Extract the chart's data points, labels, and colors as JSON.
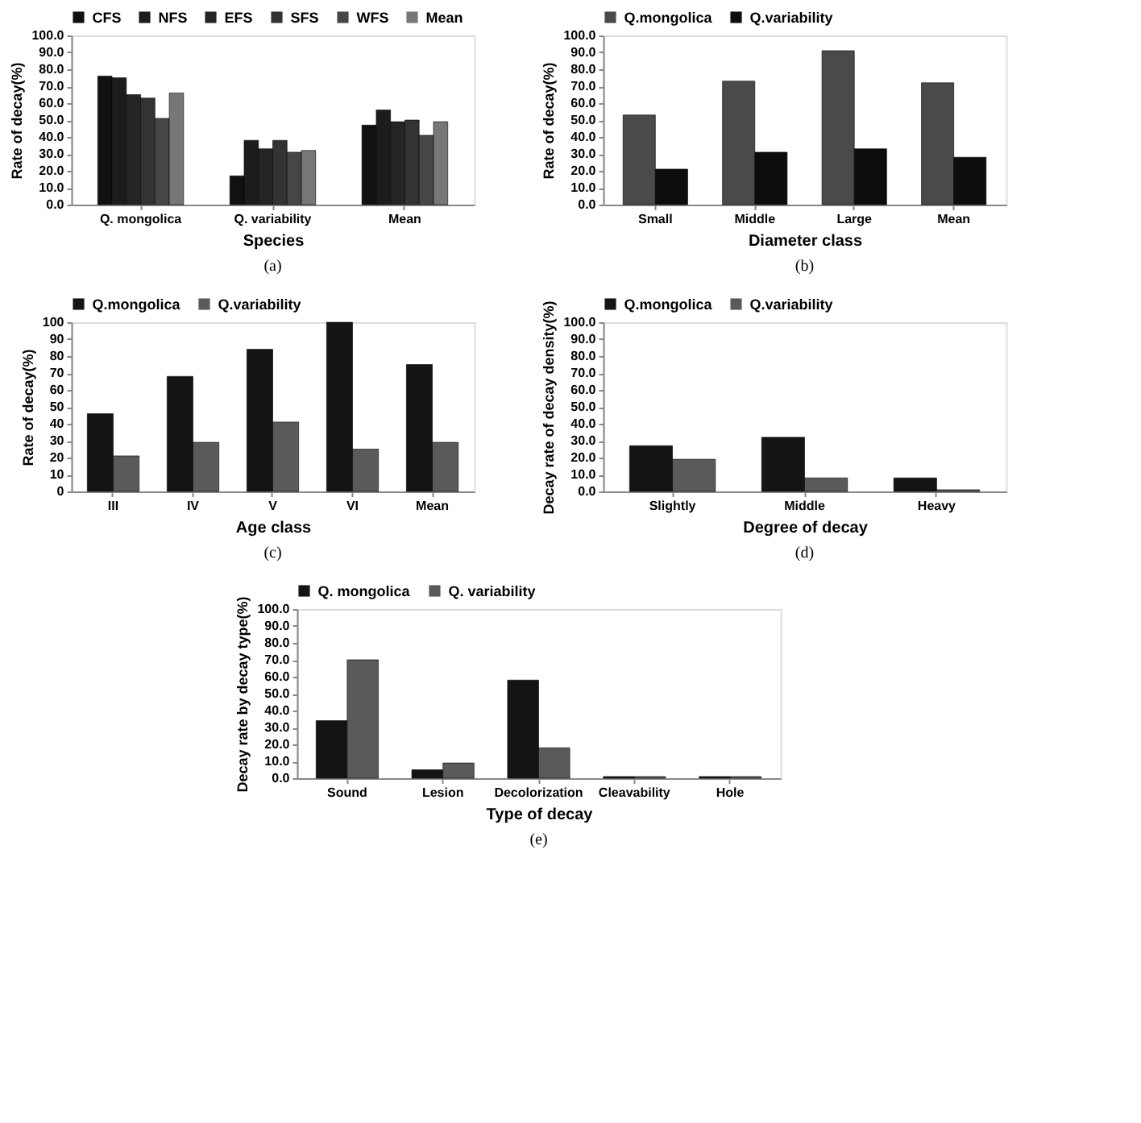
{
  "chart_data": [
    {
      "type": "bar",
      "xlabel": "Species",
      "ylabel": "Rate of decay(%)",
      "annotations": [
        "(a)"
      ],
      "categories": [
        "Q. mongolica",
        "Q. variability",
        "Mean"
      ],
      "legend": "top",
      "grid": false,
      "ylim": [
        0,
        100
      ],
      "yticks": [
        {
          "value": 0,
          "label": "0.0"
        },
        {
          "value": 10,
          "label": "10.0"
        },
        {
          "value": 20,
          "label": "20.0"
        },
        {
          "value": 30,
          "label": "30.0"
        },
        {
          "value": 40,
          "label": "40.0"
        },
        {
          "value": 50,
          "label": "50.0"
        },
        {
          "value": 60,
          "label": "60.0"
        },
        {
          "value": 70,
          "label": "70.0"
        },
        {
          "value": 80,
          "label": "80.0"
        },
        {
          "value": 90,
          "label": "90.0"
        },
        {
          "value": 100,
          "label": "100.0"
        }
      ],
      "series": [
        {
          "name": "CFS",
          "color": "#111111",
          "values": [
            76,
            17,
            47
          ]
        },
        {
          "name": "NFS",
          "color": "#1c1c1c",
          "values": [
            75,
            38,
            56
          ]
        },
        {
          "name": "EFS",
          "color": "#252525",
          "values": [
            65,
            33,
            49
          ]
        },
        {
          "name": "SFS",
          "color": "#333333",
          "values": [
            63,
            38,
            50
          ]
        },
        {
          "name": "WFS",
          "color": "#464646",
          "values": [
            51,
            31,
            41
          ]
        },
        {
          "name": "Mean",
          "color": "#777777",
          "values": [
            66,
            32,
            49
          ]
        }
      ]
    },
    {
      "type": "bar",
      "xlabel": "Diameter class",
      "ylabel": "Rate of decay(%)",
      "annotations": [
        "(b)"
      ],
      "categories": [
        "Small",
        "Middle",
        "Large",
        "Mean"
      ],
      "legend": "top",
      "grid": false,
      "ylim": [
        0,
        100
      ],
      "yticks": [
        {
          "value": 0,
          "label": "0.0"
        },
        {
          "value": 10,
          "label": "10.0"
        },
        {
          "value": 20,
          "label": "20.0"
        },
        {
          "value": 30,
          "label": "30.0"
        },
        {
          "value": 40,
          "label": "40.0"
        },
        {
          "value": 50,
          "label": "50.0"
        },
        {
          "value": 60,
          "label": "60.0"
        },
        {
          "value": 70,
          "label": "70.0"
        },
        {
          "value": 80,
          "label": "80.0"
        },
        {
          "value": 90,
          "label": "90.0"
        },
        {
          "value": 100,
          "label": "100.0"
        }
      ],
      "series": [
        {
          "name": "Q.mongolica",
          "color": "#4a4a4a",
          "values": [
            53,
            73,
            91,
            72
          ]
        },
        {
          "name": "Q.variability",
          "color": "#0d0d0d",
          "values": [
            21,
            31,
            33,
            28
          ]
        }
      ]
    },
    {
      "type": "bar",
      "xlabel": "Age class",
      "ylabel": "Rate of decay(%)",
      "annotations": [
        "(c)"
      ],
      "categories": [
        "III",
        "IV",
        "V",
        "VI",
        "Mean"
      ],
      "legend": "top",
      "grid": false,
      "ylim": [
        0,
        100
      ],
      "yticks": [
        0,
        10,
        20,
        30,
        40,
        50,
        60,
        70,
        80,
        90,
        100
      ],
      "series": [
        {
          "name": "Q.mongolica",
          "color": "#141414",
          "values": [
            46,
            68,
            84,
            100,
            75
          ]
        },
        {
          "name": "Q.variability",
          "color": "#5a5a5a",
          "values": [
            21,
            29,
            41,
            25,
            29
          ]
        }
      ]
    },
    {
      "type": "bar",
      "xlabel": "Degree of decay",
      "ylabel": "Decay rate of decay density(%)",
      "annotations": [
        "(d)"
      ],
      "categories": [
        "Slightly",
        "Middle",
        "Heavy"
      ],
      "legend": "top",
      "grid": false,
      "ylim": [
        0,
        100
      ],
      "yticks": [
        {
          "value": 0,
          "label": "0.0"
        },
        {
          "value": 10,
          "label": "10.0"
        },
        {
          "value": 20,
          "label": "20.0"
        },
        {
          "value": 30,
          "label": "30.0"
        },
        {
          "value": 40,
          "label": "40.0"
        },
        {
          "value": 50,
          "label": "50.0"
        },
        {
          "value": 60,
          "label": "60.0"
        },
        {
          "value": 70,
          "label": "70.0"
        },
        {
          "value": 80,
          "label": "80.0"
        },
        {
          "value": 90,
          "label": "90.0"
        },
        {
          "value": 100,
          "label": "100.0"
        }
      ],
      "series": [
        {
          "name": "Q.mongolica",
          "color": "#141414",
          "values": [
            27,
            32,
            8
          ]
        },
        {
          "name": "Q.variability",
          "color": "#5a5a5a",
          "values": [
            19,
            8,
            1
          ]
        }
      ]
    },
    {
      "type": "bar",
      "xlabel": "Type of decay",
      "ylabel": "Decay rate by decay type(%)",
      "annotations": [
        "(e)"
      ],
      "categories": [
        "Sound",
        "Lesion",
        "Decolorization",
        "Cleavability",
        "Hole"
      ],
      "legend": "top",
      "grid": false,
      "ylim": [
        0,
        100
      ],
      "yticks": [
        {
          "value": 0,
          "label": "0.0"
        },
        {
          "value": 10,
          "label": "10.0"
        },
        {
          "value": 20,
          "label": "20.0"
        },
        {
          "value": 30,
          "label": "30.0"
        },
        {
          "value": 40,
          "label": "40.0"
        },
        {
          "value": 50,
          "label": "50.0"
        },
        {
          "value": 60,
          "label": "60.0"
        },
        {
          "value": 70,
          "label": "70.0"
        },
        {
          "value": 80,
          "label": "80.0"
        },
        {
          "value": 90,
          "label": "90.0"
        },
        {
          "value": 100,
          "label": "100.0"
        }
      ],
      "series": [
        {
          "name": "Q. mongolica",
          "color": "#141414",
          "values": [
            34,
            5,
            58,
            1,
            1
          ]
        },
        {
          "name": "Q. variability",
          "color": "#5a5a5a",
          "values": [
            70,
            9,
            18,
            1,
            1
          ]
        }
      ]
    }
  ]
}
